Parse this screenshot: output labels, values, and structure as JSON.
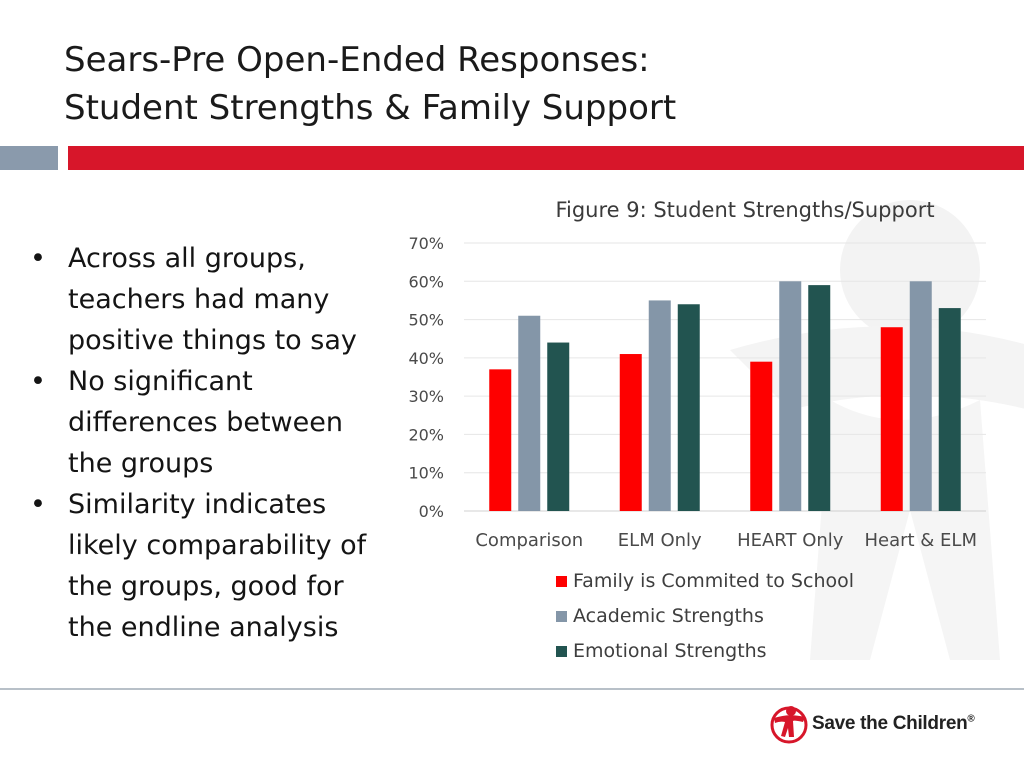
{
  "slide": {
    "title_line1": "Sears-Pre Open-Ended Responses:",
    "title_line2": "Student Strengths & Family Support"
  },
  "bullets": [
    "Across all groups, teachers had many positive things to say",
    "No significant differences between the groups",
    "Similarity indicates likely comparability of the groups, good for the endline analysis"
  ],
  "bullet_symbol": "•",
  "chart_data": {
    "type": "bar",
    "title": "Figure 9: Student Strengths/Support",
    "categories": [
      "Comparison",
      "ELM Only",
      "HEART Only",
      "Heart & ELM"
    ],
    "series": [
      {
        "name": "Family is Commited to School",
        "values": [
          37,
          41,
          39,
          48
        ],
        "color": "#fe0000"
      },
      {
        "name": "Academic Strengths",
        "values": [
          51,
          55,
          60,
          60
        ],
        "color": "#8496a8"
      },
      {
        "name": "Emotional Strengths",
        "values": [
          44,
          54,
          59,
          53
        ],
        "color": "#225450"
      }
    ],
    "ylim": [
      0,
      70
    ],
    "yticks": [
      0,
      10,
      20,
      30,
      40,
      50,
      60,
      70
    ],
    "ytick_labels": [
      "0%",
      "10%",
      "20%",
      "30%",
      "40%",
      "50%",
      "60%",
      "70%"
    ],
    "grid": true,
    "legend_position": "bottom"
  },
  "logo": {
    "text": "Save the Children",
    "mark": "®",
    "icon": "save-the-children-figure-icon",
    "color": "#d7162a"
  }
}
